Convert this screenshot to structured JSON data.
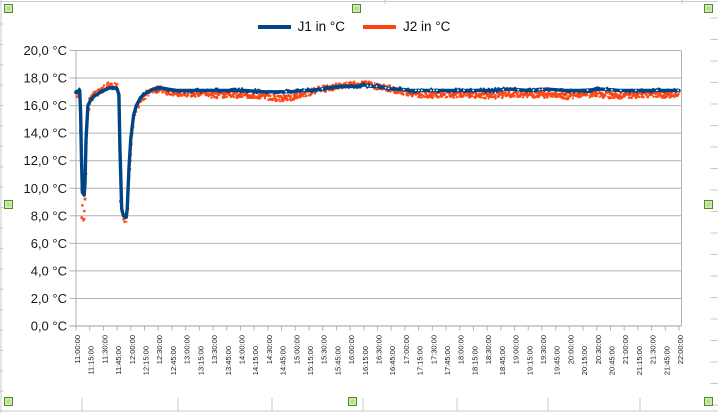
{
  "colors": {
    "background": "#ffffff",
    "plot_gridline": "#b2b2b2",
    "axis_text": "#1a1a1a",
    "spreadsheet_gridline": "#c9c9c9",
    "selection_handle_fill": "#b7dc8f",
    "selection_handle_border": "#4e8c27"
  },
  "selection": {
    "state": "chart object selected",
    "handle_count": 8
  },
  "chart_data": {
    "type": "line",
    "title": "",
    "xlabel": "",
    "ylabel": "",
    "grid": "horizontal",
    "legend_position": "top-center",
    "y_axis": {
      "min": 0,
      "max": 20,
      "step": 2,
      "unit": "°C",
      "tick_labels": [
        "20,0 °C",
        "18,0 °C",
        "16,0 °C",
        "14,0 °C",
        "12,0 °C",
        "10,0 °C",
        "8,0 °C",
        "6,0 °C",
        "4,0 °C",
        "2,0 °C",
        "0,0 °C"
      ]
    },
    "x_axis": {
      "tick_interval": "15 minutes",
      "label_rotation_deg": 90,
      "tick_labels": [
        "11:00:00",
        "11:15:00",
        "11:30:00",
        "11:45:00",
        "12:00:00",
        "12:15:00",
        "12:30:00",
        "12:45:00",
        "13:00:00",
        "13:15:00",
        "13:30:00",
        "13:45:00",
        "14:00:00",
        "14:15:00",
        "14:30:00",
        "14:45:00",
        "15:00:00",
        "15:15:00",
        "15:30:00",
        "15:45:00",
        "16:00:00",
        "16:15:00",
        "16:30:00",
        "16:45:00",
        "17:00:00",
        "17:15:00",
        "17:30:00",
        "17:45:00",
        "18:00:00",
        "18:15:00",
        "18:30:00",
        "18:45:00",
        "19:00:00",
        "19:15:00",
        "19:30:00",
        "19:45:00",
        "20:00:00",
        "20:15:00",
        "20:30:00",
        "20:45:00",
        "21:00:00",
        "21:15:00",
        "21:30:00",
        "21:45:00",
        "22:00:00"
      ]
    },
    "x_unit": "minutes after 11:00:00",
    "series": [
      {
        "name": "J1 in °C",
        "color": "#004586",
        "style": "thick-line",
        "points": [
          [
            0,
            17.0
          ],
          [
            4,
            17.1
          ],
          [
            5,
            15.5
          ],
          [
            6,
            12.0
          ],
          [
            7,
            9.7
          ],
          [
            9,
            9.5
          ],
          [
            10,
            10.5
          ],
          [
            11,
            13.5
          ],
          [
            13,
            16.0
          ],
          [
            16,
            16.4
          ],
          [
            20,
            16.7
          ],
          [
            25,
            16.9
          ],
          [
            30,
            17.1
          ],
          [
            34,
            17.2
          ],
          [
            38,
            17.3
          ],
          [
            42,
            17.3
          ],
          [
            45,
            17.2
          ],
          [
            47,
            16.8
          ],
          [
            48,
            13.0
          ],
          [
            50,
            8.5
          ],
          [
            52,
            8.0
          ],
          [
            55,
            7.9
          ],
          [
            56,
            8.5
          ],
          [
            58,
            11.5
          ],
          [
            60,
            13.6
          ],
          [
            63,
            15.3
          ],
          [
            66,
            16.0
          ],
          [
            70,
            16.5
          ],
          [
            74,
            16.8
          ],
          [
            79,
            17.0
          ],
          [
            85,
            17.2
          ],
          [
            92,
            17.3
          ],
          [
            100,
            17.2
          ],
          [
            110,
            17.1
          ],
          [
            125,
            17.1
          ],
          [
            145,
            17.1
          ],
          [
            165,
            17.1
          ],
          [
            185,
            17.1
          ],
          [
            205,
            17.0
          ],
          [
            220,
            17.0
          ],
          [
            235,
            17.0
          ],
          [
            248,
            17.1
          ],
          [
            258,
            17.1
          ],
          [
            268,
            17.2
          ],
          [
            278,
            17.3
          ],
          [
            288,
            17.4
          ],
          [
            298,
            17.4
          ],
          [
            308,
            17.4
          ],
          [
            315,
            17.5
          ],
          [
            322,
            17.4
          ],
          [
            330,
            17.4
          ],
          [
            338,
            17.3
          ],
          [
            346,
            17.2
          ],
          [
            355,
            17.2
          ],
          [
            365,
            17.1
          ],
          [
            378,
            17.1
          ],
          [
            395,
            17.1
          ],
          [
            415,
            17.1
          ],
          [
            435,
            17.1
          ],
          [
            455,
            17.1
          ],
          [
            475,
            17.2
          ],
          [
            495,
            17.1
          ],
          [
            515,
            17.2
          ],
          [
            535,
            17.1
          ],
          [
            555,
            17.1
          ],
          [
            575,
            17.2
          ],
          [
            595,
            17.1
          ],
          [
            615,
            17.1
          ],
          [
            635,
            17.1
          ],
          [
            660,
            17.1
          ]
        ]
      },
      {
        "name": "J2 in °C",
        "color": "#FF420E",
        "style": "scatter-dots",
        "points": [
          [
            0,
            16.8
          ],
          [
            4,
            16.9
          ],
          [
            5,
            14.0
          ],
          [
            6,
            10.0
          ],
          [
            7,
            7.8
          ],
          [
            9,
            7.6
          ],
          [
            10,
            9.5
          ],
          [
            11,
            12.5
          ],
          [
            13,
            15.7
          ],
          [
            16,
            16.5
          ],
          [
            20,
            16.8
          ],
          [
            25,
            17.0
          ],
          [
            30,
            17.2
          ],
          [
            34,
            17.4
          ],
          [
            38,
            17.5
          ],
          [
            42,
            17.4
          ],
          [
            45,
            17.3
          ],
          [
            47,
            16.5
          ],
          [
            48,
            12.0
          ],
          [
            50,
            8.2
          ],
          [
            52,
            7.9
          ],
          [
            55,
            7.7
          ],
          [
            56,
            8.3
          ],
          [
            58,
            11.0
          ],
          [
            60,
            13.0
          ],
          [
            63,
            15.0
          ],
          [
            66,
            15.8
          ],
          [
            70,
            16.3
          ],
          [
            74,
            16.6
          ],
          [
            79,
            16.9
          ],
          [
            85,
            17.1
          ],
          [
            92,
            17.2
          ],
          [
            100,
            17.0
          ],
          [
            110,
            16.9
          ],
          [
            125,
            16.9
          ],
          [
            145,
            16.8
          ],
          [
            165,
            16.8
          ],
          [
            185,
            16.8
          ],
          [
            205,
            16.7
          ],
          [
            215,
            16.6
          ],
          [
            225,
            16.5
          ],
          [
            235,
            16.6
          ],
          [
            248,
            16.8
          ],
          [
            258,
            17.0
          ],
          [
            268,
            17.2
          ],
          [
            278,
            17.3
          ],
          [
            288,
            17.4
          ],
          [
            298,
            17.5
          ],
          [
            308,
            17.5
          ],
          [
            315,
            17.6
          ],
          [
            322,
            17.5
          ],
          [
            330,
            17.4
          ],
          [
            338,
            17.3
          ],
          [
            346,
            17.2
          ],
          [
            355,
            17.0
          ],
          [
            365,
            16.9
          ],
          [
            378,
            16.8
          ],
          [
            395,
            16.8
          ],
          [
            415,
            16.8
          ],
          [
            435,
            16.8
          ],
          [
            455,
            16.7
          ],
          [
            475,
            16.8
          ],
          [
            495,
            16.8
          ],
          [
            515,
            16.8
          ],
          [
            535,
            16.7
          ],
          [
            555,
            16.8
          ],
          [
            575,
            16.8
          ],
          [
            595,
            16.7
          ],
          [
            615,
            16.8
          ],
          [
            635,
            16.8
          ],
          [
            660,
            16.8
          ]
        ]
      }
    ]
  }
}
